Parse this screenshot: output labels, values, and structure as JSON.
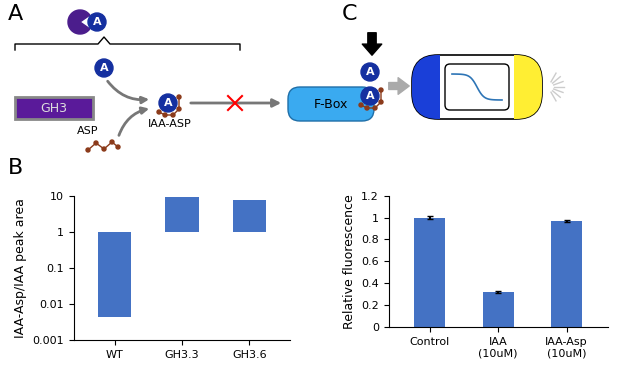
{
  "panel_labels": [
    "A",
    "B",
    "C"
  ],
  "diagram_a": {
    "auxin_label": "A",
    "enzyme": "GH3",
    "amino_acid": "ASP",
    "conjugate": "IAA-ASP",
    "receptor": "F-Box"
  },
  "diagram_c": {
    "auxin_label": "A"
  },
  "chart_data": [
    {
      "type": "floating_bar",
      "categories": [
        "WT",
        "GH3.3",
        "GH3.6"
      ],
      "ranges": [
        [
          0.0045,
          1
        ],
        [
          1,
          9
        ],
        [
          1,
          7.5
        ]
      ],
      "ylabel": "IAA-Asp/IAA peak area",
      "log": "y",
      "ylim": [
        0.001,
        10
      ],
      "yticks": [
        0.001,
        0.01,
        0.1,
        1,
        10
      ],
      "color": "#4472c4"
    },
    {
      "type": "bar",
      "categories": [
        "Control",
        "IAA\n(10uM)",
        "IAA-Asp\n(10uM)"
      ],
      "values": [
        1,
        0.32,
        0.97
      ],
      "errors": [
        0.01,
        0.01,
        0.01
      ],
      "ylabel": "Relative fluorescence",
      "ylim": [
        0,
        1.2
      ],
      "yticks": [
        0,
        0.2,
        0.4,
        0.6,
        0.8,
        1,
        1.2
      ],
      "color": "#4472c4"
    }
  ]
}
